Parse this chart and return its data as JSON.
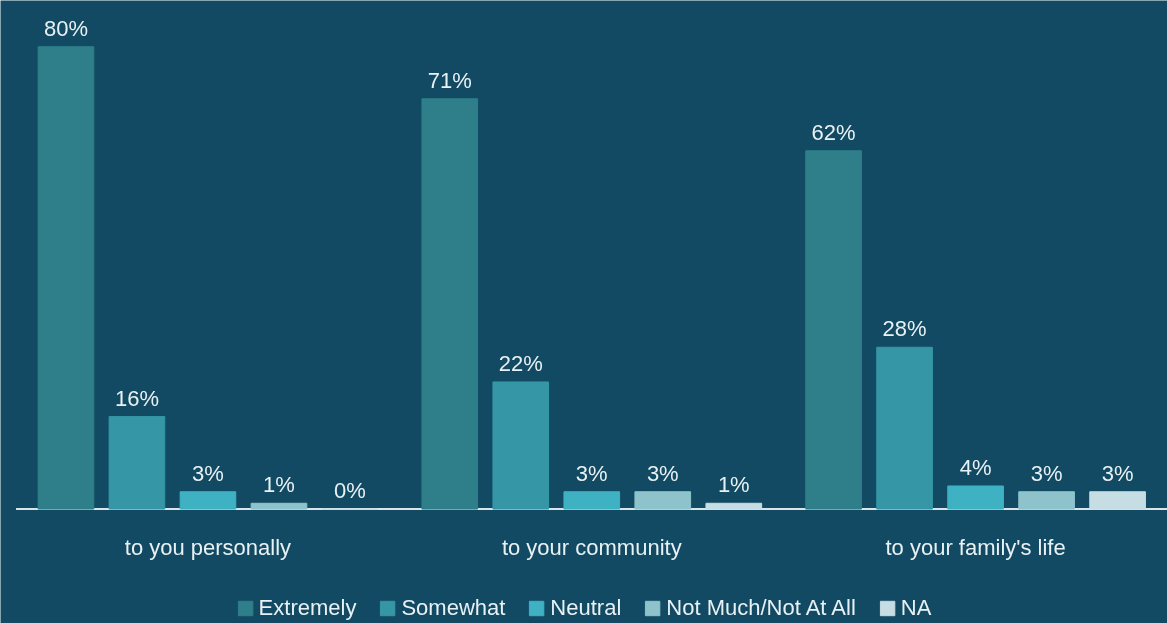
{
  "chart_data": {
    "type": "bar",
    "categories": [
      "to you personally",
      "to your community",
      "to your family's life"
    ],
    "series": [
      {
        "name": "Extremely",
        "color": "#2e7f8a",
        "values": [
          80,
          71,
          62
        ],
        "value_labels": [
          "80%",
          "71%",
          "62%"
        ]
      },
      {
        "name": "Somewhat",
        "color": "#3597a6",
        "values": [
          16,
          22,
          28
        ],
        "value_labels": [
          "16%",
          "22%",
          "28%"
        ]
      },
      {
        "name": "Neutral",
        "color": "#3eb1c2",
        "values": [
          3,
          3,
          4
        ],
        "value_labels": [
          "3%",
          "3%",
          "4%"
        ]
      },
      {
        "name": "Not Much/Not At All",
        "color": "#8fc3cc",
        "values": [
          1,
          3,
          3
        ],
        "value_labels": [
          "1%",
          "3%",
          "3%"
        ]
      },
      {
        "name": "NA",
        "color": "#c5dde3",
        "values": [
          0,
          1,
          3
        ],
        "value_labels": [
          "0%",
          "1%",
          "3%"
        ]
      }
    ],
    "grid": false,
    "legend": "bottom"
  }
}
